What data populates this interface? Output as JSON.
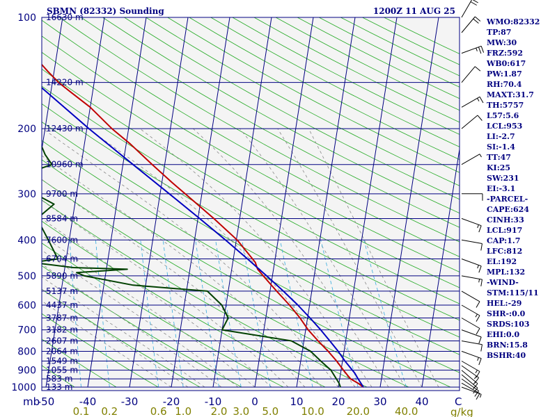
{
  "chart_data": {
    "type": "line",
    "subtype": "skew-T log-P sounding",
    "title": "SBMN (82332) Sounding",
    "time": "1200Z 11 AUG 25",
    "pressure_axis": {
      "unit": "mb",
      "range": [
        1000,
        100
      ],
      "scale": "log",
      "ticks": [
        {
          "p": 100,
          "label": "100"
        },
        {
          "p": 200,
          "label": "200"
        },
        {
          "p": 300,
          "label": "300"
        },
        {
          "p": 400,
          "label": "400"
        },
        {
          "p": 500,
          "label": "500"
        },
        {
          "p": 600,
          "label": "600"
        },
        {
          "p": 700,
          "label": "700"
        },
        {
          "p": 800,
          "label": "800"
        },
        {
          "p": 900,
          "label": "900"
        },
        {
          "p": 1000,
          "label": "1000"
        }
      ]
    },
    "height_labels": [
      {
        "p": 100,
        "label": "16630 m"
      },
      {
        "p": 150,
        "label": "14220 m"
      },
      {
        "p": 200,
        "label": "12430 m"
      },
      {
        "p": 250,
        "label": "10960 m"
      },
      {
        "p": 300,
        "label": "9700 m"
      },
      {
        "p": 350,
        "label": "8584 m"
      },
      {
        "p": 400,
        "label": "7600 m"
      },
      {
        "p": 450,
        "label": "6704 m"
      },
      {
        "p": 500,
        "label": "5890 m"
      },
      {
        "p": 550,
        "label": "5137 m"
      },
      {
        "p": 600,
        "label": "4437 m"
      },
      {
        "p": 650,
        "label": "3787 m"
      },
      {
        "p": 700,
        "label": "3182 m"
      },
      {
        "p": 750,
        "label": "2607 m"
      },
      {
        "p": 800,
        "label": "2064 m"
      },
      {
        "p": 850,
        "label": "1549 m"
      },
      {
        "p": 900,
        "label": "1055 m"
      },
      {
        "p": 950,
        "label": "583 m"
      },
      {
        "p": 1000,
        "label": "133 m"
      }
    ],
    "temperature_axis": {
      "unit": "C",
      "range": [
        -50,
        50
      ],
      "ticks": [
        {
          "t": -50,
          "label": "-50"
        },
        {
          "t": -40,
          "label": "-40"
        },
        {
          "t": -30,
          "label": "-30"
        },
        {
          "t": -20,
          "label": "-20"
        },
        {
          "t": -10,
          "label": "-10"
        },
        {
          "t": 0,
          "label": "0"
        },
        {
          "t": 10,
          "label": "10"
        },
        {
          "t": 20,
          "label": "20"
        },
        {
          "t": 30,
          "label": "30"
        },
        {
          "t": 40,
          "label": "40"
        }
      ]
    },
    "mixing_ratio_axis": {
      "unit": "g/kg",
      "ticks": [
        {
          "w": 0.1,
          "label": "0.1"
        },
        {
          "w": 0.2,
          "label": "0.2"
        },
        {
          "w": 0.6,
          "label": "0.6"
        },
        {
          "w": 1.0,
          "label": "1.0"
        },
        {
          "w": 2.0,
          "label": "2.0"
        },
        {
          "w": 3.0,
          "label": "3.0"
        },
        {
          "w": 5.0,
          "label": "5.0"
        },
        {
          "w": 10.0,
          "label": "10.0"
        },
        {
          "w": 20.0,
          "label": "20.0"
        },
        {
          "w": 40.0,
          "label": "40.0"
        }
      ]
    },
    "series": [
      {
        "color": "#c00000",
        "description": "temperature",
        "points": [
          [
            1000,
            26
          ],
          [
            975,
            24.5
          ],
          [
            950,
            22.6
          ],
          [
            925,
            21.6
          ],
          [
            900,
            20.6
          ],
          [
            850,
            18.6
          ],
          [
            800,
            16.2
          ],
          [
            750,
            13.4
          ],
          [
            700,
            10.6
          ],
          [
            650,
            8.2
          ],
          [
            600,
            5.2
          ],
          [
            550,
            1.6
          ],
          [
            500,
            -2.2
          ],
          [
            480,
            -3.8
          ],
          [
            460,
            -4.6
          ],
          [
            450,
            -5.4
          ],
          [
            400,
            -9.8
          ],
          [
            350,
            -16.2
          ],
          [
            300,
            -24.0
          ],
          [
            280,
            -27.5
          ],
          [
            250,
            -33.0
          ],
          [
            220,
            -39.0
          ],
          [
            200,
            -44.0
          ],
          [
            175,
            -50.0
          ],
          [
            160,
            -55.0
          ],
          [
            150,
            -58.5
          ],
          [
            140,
            -61.5
          ],
          [
            130,
            -64.5
          ],
          [
            120,
            -67.0
          ],
          [
            110,
            -70.5
          ],
          [
            100,
            -74.0
          ]
        ]
      },
      {
        "color": "#004000",
        "description": "dewpoint",
        "points": [
          [
            1000,
            20.5
          ],
          [
            975,
            20.0
          ],
          [
            950,
            19.2
          ],
          [
            900,
            17.6
          ],
          [
            850,
            14.8
          ],
          [
            800,
            12.0
          ],
          [
            750,
            7.0
          ],
          [
            700,
            -10.0
          ],
          [
            650,
            -9.0
          ],
          [
            600,
            -11.0
          ],
          [
            550,
            -15.0
          ],
          [
            530,
            -33.0
          ],
          [
            500,
            -45.0
          ],
          [
            490,
            -47.0
          ],
          [
            480,
            -35.0
          ],
          [
            475,
            -48.0
          ],
          [
            460,
            -58.0
          ],
          [
            450,
            -52.0
          ],
          [
            400,
            -55.0
          ],
          [
            350,
            -58.5
          ],
          [
            320,
            -55.0
          ],
          [
            300,
            -60.0
          ],
          [
            270,
            -65.0
          ],
          [
            250,
            -57.0
          ],
          [
            235,
            -59.0
          ],
          [
            215,
            -61.0
          ],
          [
            200,
            -63.5
          ],
          [
            180,
            -69.0
          ],
          [
            160,
            -77.0
          ],
          [
            140,
            -80.5
          ],
          [
            120,
            -87.0
          ],
          [
            110,
            -89.5
          ],
          [
            100,
            -92.0
          ]
        ]
      },
      {
        "color": "#0000c0",
        "description": "parcel",
        "points": [
          [
            1000,
            26
          ],
          [
            950,
            24.4
          ],
          [
            917,
            23.4
          ],
          [
            850,
            20.6
          ],
          [
            800,
            18.6
          ],
          [
            750,
            16.2
          ],
          [
            700,
            13.6
          ],
          [
            650,
            10.6
          ],
          [
            600,
            7.2
          ],
          [
            550,
            3.2
          ],
          [
            500,
            -1.4
          ],
          [
            450,
            -6.6
          ],
          [
            400,
            -12.6
          ],
          [
            350,
            -19.6
          ],
          [
            300,
            -27.8
          ],
          [
            250,
            -37.6
          ],
          [
            200,
            -49.5
          ],
          [
            150,
            -64.0
          ],
          [
            100,
            -84.0
          ]
        ]
      }
    ],
    "winds": [
      {
        "p": 1000,
        "dir": 110,
        "spd": 5
      },
      {
        "p": 975,
        "dir": 120,
        "spd": 10
      },
      {
        "p": 950,
        "dir": 125,
        "spd": 10
      },
      {
        "p": 925,
        "dir": 130,
        "spd": 15
      },
      {
        "p": 900,
        "dir": 130,
        "spd": 15
      },
      {
        "p": 875,
        "dir": 125,
        "spd": 15
      },
      {
        "p": 850,
        "dir": 120,
        "spd": 15
      },
      {
        "p": 800,
        "dir": 110,
        "spd": 15
      },
      {
        "p": 750,
        "dir": 100,
        "spd": 10
      },
      {
        "p": 700,
        "dir": 110,
        "spd": 10
      },
      {
        "p": 650,
        "dir": 120,
        "spd": 10
      },
      {
        "p": 600,
        "dir": 120,
        "spd": 15
      },
      {
        "p": 550,
        "dir": 120,
        "spd": 10
      },
      {
        "p": 500,
        "dir": 100,
        "spd": 15
      },
      {
        "p": 450,
        "dir": 110,
        "spd": 15
      },
      {
        "p": 400,
        "dir": 100,
        "spd": 10
      },
      {
        "p": 350,
        "dir": 110,
        "spd": 15
      },
      {
        "p": 300,
        "dir": 90,
        "spd": 10
      },
      {
        "p": 250,
        "dir": 60,
        "spd": 5
      },
      {
        "p": 200,
        "dir": 50,
        "spd": 10
      },
      {
        "p": 175,
        "dir": 60,
        "spd": 15
      },
      {
        "p": 150,
        "dir": 40,
        "spd": 10
      },
      {
        "p": 125,
        "dir": 70,
        "spd": 25
      },
      {
        "p": 110,
        "dir": 40,
        "spd": 20
      },
      {
        "p": 100,
        "dir": 30,
        "spd": 20
      }
    ],
    "indices": [
      "WMO:82332",
      "TP:87",
      "MW:30",
      "FRZ:592",
      "WB0:617",
      "PW:1.87",
      "RH:70.4",
      "MAXT:31.7",
      "TH:5757",
      "L57:5.6",
      "LCL:953",
      "LI:-2.7",
      "SI:-1.4",
      "TT:47",
      "KI:25",
      "SW:231",
      "EI:-3.1",
      "-PARCEL-",
      "CAPE:624",
      "CINH:33",
      "LCL:917",
      "CAP:1.7",
      "LFC:812",
      "EL:192",
      "MPL:132",
      "-WIND-",
      "STM:115/11",
      "HEL:-29",
      "SHR-:0.0",
      "SRDS:103",
      "EHI:0.0",
      "BRN:15.8",
      "BSHR:40"
    ]
  }
}
